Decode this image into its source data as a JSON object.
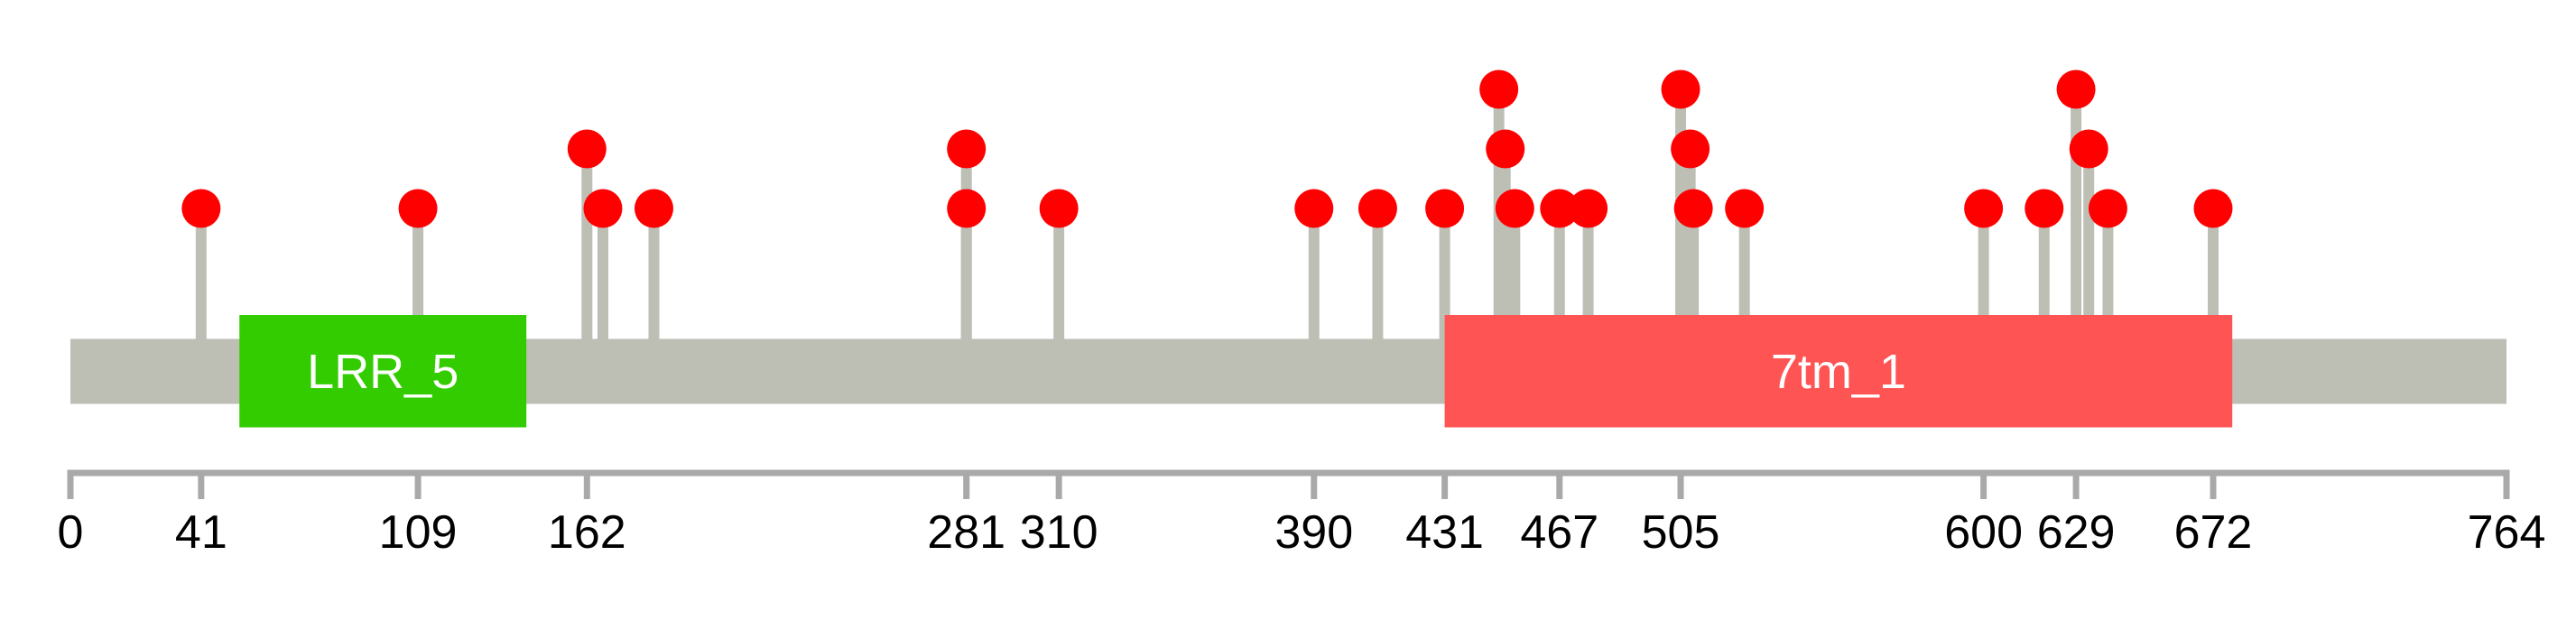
{
  "chart_data": {
    "type": "lollipop",
    "title": "",
    "xlabel": "",
    "ylabel": "",
    "xlim": [
      0,
      764
    ],
    "protein_length": 764,
    "grid": false,
    "legend": "none",
    "axis_ticks": [
      0,
      41,
      109,
      162,
      281,
      310,
      390,
      431,
      467,
      505,
      600,
      629,
      672,
      764
    ],
    "domains": [
      {
        "label": "LRR_5",
        "start": 53,
        "end": 143,
        "color": "#33CC00"
      },
      {
        "label": "7tm_1",
        "start": 431,
        "end": 678,
        "color": "#FF5454"
      }
    ],
    "mutations": [
      {
        "pos": 41,
        "stack": 1
      },
      {
        "pos": 109,
        "stack": 1
      },
      {
        "pos": 162,
        "stack": 2
      },
      {
        "pos": 167,
        "stack": 1
      },
      {
        "pos": 183,
        "stack": 1
      },
      {
        "pos": 281,
        "stack": 2
      },
      {
        "pos": 281,
        "stack": 1
      },
      {
        "pos": 310,
        "stack": 1
      },
      {
        "pos": 390,
        "stack": 1
      },
      {
        "pos": 410,
        "stack": 1
      },
      {
        "pos": 431,
        "stack": 1
      },
      {
        "pos": 448,
        "stack": 3
      },
      {
        "pos": 450,
        "stack": 2
      },
      {
        "pos": 453,
        "stack": 1
      },
      {
        "pos": 467,
        "stack": 1
      },
      {
        "pos": 476,
        "stack": 1
      },
      {
        "pos": 505,
        "stack": 3
      },
      {
        "pos": 508,
        "stack": 2
      },
      {
        "pos": 509,
        "stack": 1
      },
      {
        "pos": 525,
        "stack": 1
      },
      {
        "pos": 600,
        "stack": 1
      },
      {
        "pos": 619,
        "stack": 1
      },
      {
        "pos": 629,
        "stack": 3
      },
      {
        "pos": 633,
        "stack": 2
      },
      {
        "pos": 639,
        "stack": 1
      },
      {
        "pos": 672,
        "stack": 1
      }
    ],
    "colors": {
      "background": "#FFFFFF",
      "backbone": "#BDBFB5",
      "stem": "#BDBFB5",
      "mutation": "#FF0000",
      "axis": "#A9A9A9",
      "tick_label": "#000000",
      "domain_text": "#FFFFFF"
    }
  }
}
